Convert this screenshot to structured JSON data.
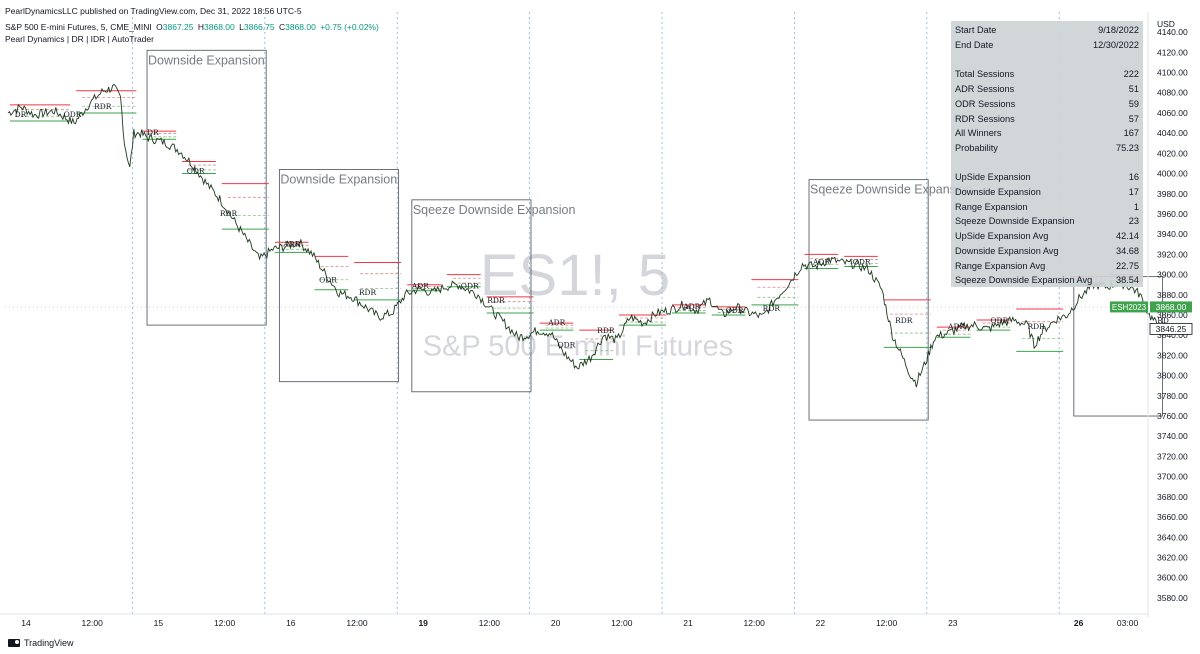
{
  "publisher_line": "PearlDynamicsLLC published on TradingView.com, Dec 31, 2022 18:56 UTC-5",
  "symbol_line": "S&P 500 E-mini Futures, 5, CME_MINI",
  "ohlc": {
    "o_label": "O",
    "o": "3867.25",
    "h_label": "H",
    "h": "3868.00",
    "l_label": "L",
    "l": "3866.75",
    "c_label": "C",
    "c": "3868.00",
    "change": "+0.75 (+0.02%)"
  },
  "indicator_line": "Pearl Dynamics | DR | IDR | AutoTrader",
  "watermark": {
    "ticker": "ES1!, 5",
    "name": "S&P 500 E-mini Futures"
  },
  "currency": "USD",
  "footer_brand": "TradingView",
  "stats": [
    {
      "label": "Start Date",
      "value": "9/18/2022"
    },
    {
      "label": "End Date",
      "value": "12/30/2022"
    },
    {
      "label": "Total Sessions",
      "value": "222"
    },
    {
      "label": "ADR Sessions",
      "value": "51"
    },
    {
      "label": "ODR Sessions",
      "value": "59"
    },
    {
      "label": "RDR Sessions",
      "value": "57"
    },
    {
      "label": "All Winners",
      "value": "167"
    },
    {
      "label": "Probability",
      "value": "75.23"
    },
    {
      "label": "UpSide Expansion",
      "value": "16"
    },
    {
      "label": "Downside Expansion",
      "value": "17"
    },
    {
      "label": "Range Expansion",
      "value": "1"
    },
    {
      "label": "Sqeeze Downside Expansion",
      "value": "23"
    },
    {
      "label": "UpSide Expansion Avg",
      "value": "42.14"
    },
    {
      "label": "Downside Expansion Avg",
      "value": "34.68"
    },
    {
      "label": "Range Expansion Avg",
      "value": "22.75"
    },
    {
      "label": "Sqeeze Downside Expansion Avg",
      "value": "38.54"
    }
  ],
  "chart_data": {
    "type": "line",
    "title": "S&P 500 E-mini Futures, 5, CME_MINI",
    "ylabel": "USD",
    "ylim": [
      3568,
      4152
    ],
    "y_ticks": [
      3580,
      3600,
      3620,
      3640,
      3660,
      3680,
      3700,
      3720,
      3740,
      3760,
      3780,
      3800,
      3820,
      3840,
      3860,
      3880,
      3900,
      3920,
      3940,
      3960,
      3980,
      4000,
      4020,
      4040,
      4060,
      4080,
      4100,
      4120,
      4140
    ],
    "x_ticks": [
      {
        "label": "14",
        "bold": false
      },
      {
        "label": "12:00",
        "bold": false
      },
      {
        "label": "15",
        "bold": false
      },
      {
        "label": "12:00",
        "bold": false
      },
      {
        "label": "16",
        "bold": false
      },
      {
        "label": "12:00",
        "bold": false
      },
      {
        "label": "19",
        "bold": true
      },
      {
        "label": "12:00",
        "bold": false
      },
      {
        "label": "20",
        "bold": false
      },
      {
        "label": "12:00",
        "bold": false
      },
      {
        "label": "21",
        "bold": false
      },
      {
        "label": "12:00",
        "bold": false
      },
      {
        "label": "22",
        "bold": false
      },
      {
        "label": "12:00",
        "bold": false
      },
      {
        "label": "23",
        "bold": false
      },
      {
        "label": "26",
        "bold": true
      },
      {
        "label": "03:00",
        "bold": false
      }
    ],
    "session_count": 9,
    "price_path": [
      [
        0,
        4060
      ],
      [
        0.1,
        4066
      ],
      [
        0.2,
        4058
      ],
      [
        0.35,
        4062
      ],
      [
        0.5,
        4050
      ],
      [
        0.62,
        4070
      ],
      [
        0.72,
        4082
      ],
      [
        0.8,
        4085
      ],
      [
        0.85,
        4075
      ],
      [
        0.88,
        4030
      ],
      [
        0.92,
        4005
      ],
      [
        0.95,
        4040
      ],
      [
        1.0,
        4040
      ],
      [
        1.05,
        4036
      ],
      [
        1.2,
        4030
      ],
      [
        1.3,
        4022
      ],
      [
        1.4,
        4008
      ],
      [
        1.5,
        3990
      ],
      [
        1.6,
        3975
      ],
      [
        1.7,
        3955
      ],
      [
        1.8,
        3935
      ],
      [
        1.9,
        3915
      ],
      [
        2.0,
        3925
      ],
      [
        2.1,
        3928
      ],
      [
        2.2,
        3932
      ],
      [
        2.3,
        3920
      ],
      [
        2.4,
        3900
      ],
      [
        2.5,
        3882
      ],
      [
        2.6,
        3878
      ],
      [
        2.7,
        3868
      ],
      [
        2.8,
        3858
      ],
      [
        2.9,
        3862
      ],
      [
        3.0,
        3880
      ],
      [
        3.1,
        3886
      ],
      [
        3.2,
        3882
      ],
      [
        3.3,
        3888
      ],
      [
        3.4,
        3890
      ],
      [
        3.55,
        3880
      ],
      [
        3.65,
        3865
      ],
      [
        3.75,
        3852
      ],
      [
        3.85,
        3838
      ],
      [
        3.92,
        3840
      ],
      [
        4.0,
        3845
      ],
      [
        4.1,
        3842
      ],
      [
        4.2,
        3822
      ],
      [
        4.3,
        3808
      ],
      [
        4.4,
        3818
      ],
      [
        4.5,
        3840
      ],
      [
        4.6,
        3835
      ],
      [
        4.7,
        3858
      ],
      [
        4.8,
        3852
      ],
      [
        4.9,
        3862
      ],
      [
        5.0,
        3865
      ],
      [
        5.1,
        3870
      ],
      [
        5.2,
        3865
      ],
      [
        5.3,
        3875
      ],
      [
        5.4,
        3860
      ],
      [
        5.5,
        3868
      ],
      [
        5.6,
        3862
      ],
      [
        5.7,
        3858
      ],
      [
        5.8,
        3876
      ],
      [
        5.9,
        3892
      ],
      [
        6.0,
        3910
      ],
      [
        6.1,
        3908
      ],
      [
        6.2,
        3915
      ],
      [
        6.3,
        3912
      ],
      [
        6.4,
        3910
      ],
      [
        6.5,
        3905
      ],
      [
        6.6,
        3885
      ],
      [
        6.68,
        3840
      ],
      [
        6.75,
        3820
      ],
      [
        6.82,
        3800
      ],
      [
        6.86,
        3793
      ],
      [
        6.92,
        3810
      ],
      [
        7.0,
        3838
      ],
      [
        7.1,
        3842
      ],
      [
        7.2,
        3848
      ],
      [
        7.3,
        3850
      ],
      [
        7.4,
        3846
      ],
      [
        7.5,
        3852
      ],
      [
        7.6,
        3855
      ],
      [
        7.7,
        3850
      ],
      [
        7.75,
        3830
      ],
      [
        7.82,
        3845
      ],
      [
        7.92,
        3856
      ],
      [
        8.0,
        3860
      ],
      [
        8.1,
        3878
      ],
      [
        8.2,
        3890
      ],
      [
        8.3,
        3888
      ],
      [
        8.4,
        3892
      ],
      [
        8.5,
        3886
      ],
      [
        8.55,
        3880
      ],
      [
        8.62,
        3860
      ],
      [
        8.68,
        3850
      ],
      [
        8.72,
        3848
      ]
    ],
    "expansion_boxes": [
      {
        "label": "Downside Expansion",
        "x0": 1.05,
        "x1": 1.95,
        "top": 4122,
        "bottom": 3850
      },
      {
        "label": "Downside Expansion",
        "x0": 2.05,
        "x1": 2.95,
        "top": 4004,
        "bottom": 3794
      },
      {
        "label": "Sqeeze Downside Expansion",
        "x0": 3.05,
        "x1": 3.95,
        "top": 3974,
        "bottom": 3784
      },
      {
        "label": "Sqeeze Downside Expansion",
        "x0": 6.05,
        "x1": 6.95,
        "top": 3994,
        "bottom": 3756
      },
      {
        "label": "",
        "x0": 8.05,
        "x1": 8.72,
        "top": 3898,
        "bottom": 3760
      }
    ],
    "range_labels": [
      {
        "text": "DR",
        "x": 0.05,
        "y": 4056
      },
      {
        "text": "ODR",
        "x": 0.42,
        "y": 4056
      },
      {
        "text": "RDR",
        "x": 0.65,
        "y": 4064
      },
      {
        "text": "DR",
        "x": 1.05,
        "y": 4038
      },
      {
        "text": "ODR",
        "x": 1.35,
        "y": 4000
      },
      {
        "text": "RDR",
        "x": 1.6,
        "y": 3958
      },
      {
        "text": "ADR",
        "x": 2.08,
        "y": 3928
      },
      {
        "text": "ODR",
        "x": 2.35,
        "y": 3892
      },
      {
        "text": "RDR",
        "x": 2.65,
        "y": 3880
      },
      {
        "text": "ADR",
        "x": 3.05,
        "y": 3886
      },
      {
        "text": "ODR",
        "x": 3.42,
        "y": 3886
      },
      {
        "text": "RDR",
        "x": 3.62,
        "y": 3872
      },
      {
        "text": "ADR",
        "x": 4.08,
        "y": 3850
      },
      {
        "text": "ODR",
        "x": 4.15,
        "y": 3828
      },
      {
        "text": "RDR",
        "x": 4.45,
        "y": 3842
      },
      {
        "text": "ADR",
        "x": 5.1,
        "y": 3866
      },
      {
        "text": "ODR",
        "x": 5.42,
        "y": 3862
      },
      {
        "text": "RDR",
        "x": 5.7,
        "y": 3864
      },
      {
        "text": "ADR",
        "x": 6.08,
        "y": 3910
      },
      {
        "text": "ODR",
        "x": 6.38,
        "y": 3910
      },
      {
        "text": "RDR",
        "x": 6.7,
        "y": 3852
      },
      {
        "text": "ADR",
        "x": 7.1,
        "y": 3846
      },
      {
        "text": "ODR",
        "x": 7.42,
        "y": 3852
      },
      {
        "text": "RDR",
        "x": 7.7,
        "y": 3846
      },
      {
        "text": "RD",
        "x": 8.68,
        "y": 3852
      }
    ],
    "price_labels": [
      {
        "text": "ESH2023",
        "value": "3868.00",
        "price": 3868,
        "color": "#3fa34d"
      },
      {
        "text": "",
        "value": "3846.25",
        "price": 3846.25,
        "color": "#ffffff"
      }
    ]
  },
  "colors": {
    "up_green": "#089981",
    "red_level": "#f23645",
    "green_level": "#3fa34d",
    "grid_blue": "#7fb3d5",
    "box": "#5d606b",
    "watermark": "#b2b5be"
  }
}
